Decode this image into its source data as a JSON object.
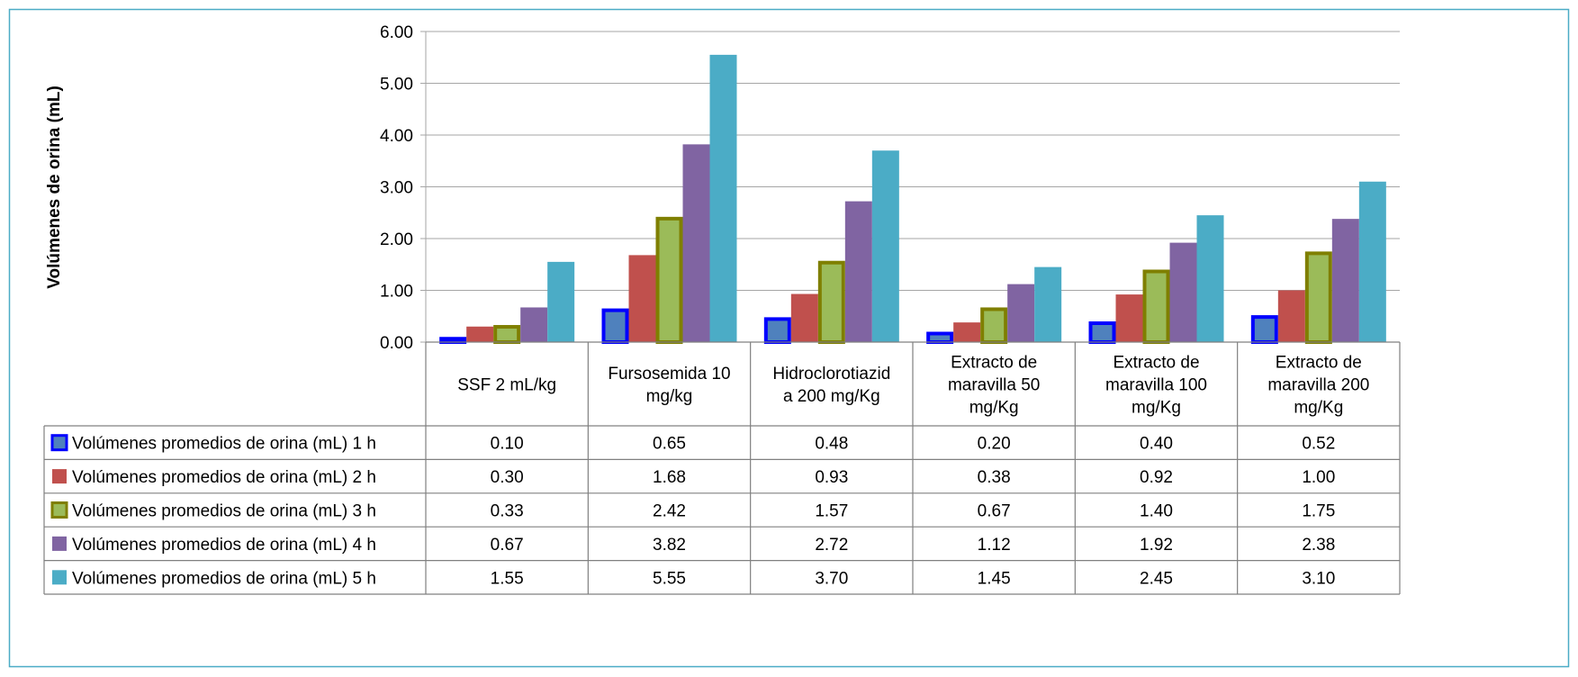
{
  "chart_data": {
    "type": "bar",
    "ylabel": "Volúmenes de orina (mL)",
    "ylim": [
      0,
      6
    ],
    "ytick_labels": [
      "0.00",
      "1.00",
      "2.00",
      "3.00",
      "4.00",
      "5.00",
      "6.00"
    ],
    "grid": true,
    "legend_placement": "data-table-left",
    "categories": [
      [
        "SSF 2 mL/kg"
      ],
      [
        "Fursosemida 10",
        "mg/kg"
      ],
      [
        "Hidroclorotiazid",
        "a 200 mg/Kg"
      ],
      [
        "Extracto de",
        "maravilla 50",
        "mg/Kg"
      ],
      [
        "Extracto de",
        "maravilla 100",
        "mg/Kg"
      ],
      [
        "Extracto de",
        "maravilla 200",
        "mg/Kg"
      ]
    ],
    "series": [
      {
        "name": "Volúmenes promedios de orina (mL) 1 h",
        "fill": "#4F81BD",
        "stroke": "#0000FF",
        "values": [
          0.1,
          0.65,
          0.48,
          0.2,
          0.4,
          0.52
        ],
        "value_labels": [
          "0.10",
          "0.65",
          "0.48",
          "0.20",
          "0.40",
          "0.52"
        ]
      },
      {
        "name": "Volúmenes promedios de orina (mL) 2 h",
        "fill": "#C0504D",
        "stroke": "",
        "values": [
          0.3,
          1.68,
          0.93,
          0.38,
          0.92,
          1.0
        ],
        "value_labels": [
          "0.30",
          "1.68",
          "0.93",
          "0.38",
          "0.92",
          "1.00"
        ]
      },
      {
        "name": "Volúmenes promedios de orina (mL) 3 h",
        "fill": "#9BBB59",
        "stroke": "#7F7F00",
        "values": [
          0.33,
          2.42,
          1.57,
          0.67,
          1.4,
          1.75
        ],
        "value_labels": [
          "0.33",
          "2.42",
          "1.57",
          "0.67",
          "1.40",
          "1.75"
        ]
      },
      {
        "name": "Volúmenes promedios de orina (mL) 4 h",
        "fill": "#8064A2",
        "stroke": "",
        "values": [
          0.67,
          3.82,
          2.72,
          1.12,
          1.92,
          2.38
        ],
        "value_labels": [
          "0.67",
          "3.82",
          "2.72",
          "1.12",
          "1.92",
          "2.38"
        ]
      },
      {
        "name": "Volúmenes promedios de orina (mL) 5 h",
        "fill": "#4BACC6",
        "stroke": "",
        "values": [
          1.55,
          5.55,
          3.7,
          1.45,
          2.45,
          3.1
        ],
        "value_labels": [
          "1.55",
          "5.55",
          "3.70",
          "1.45",
          "2.45",
          "3.10"
        ]
      }
    ]
  },
  "colors": {
    "frame_border": "#4BACC6",
    "gridline": "#A6A6A6",
    "table_border": "#808080"
  }
}
